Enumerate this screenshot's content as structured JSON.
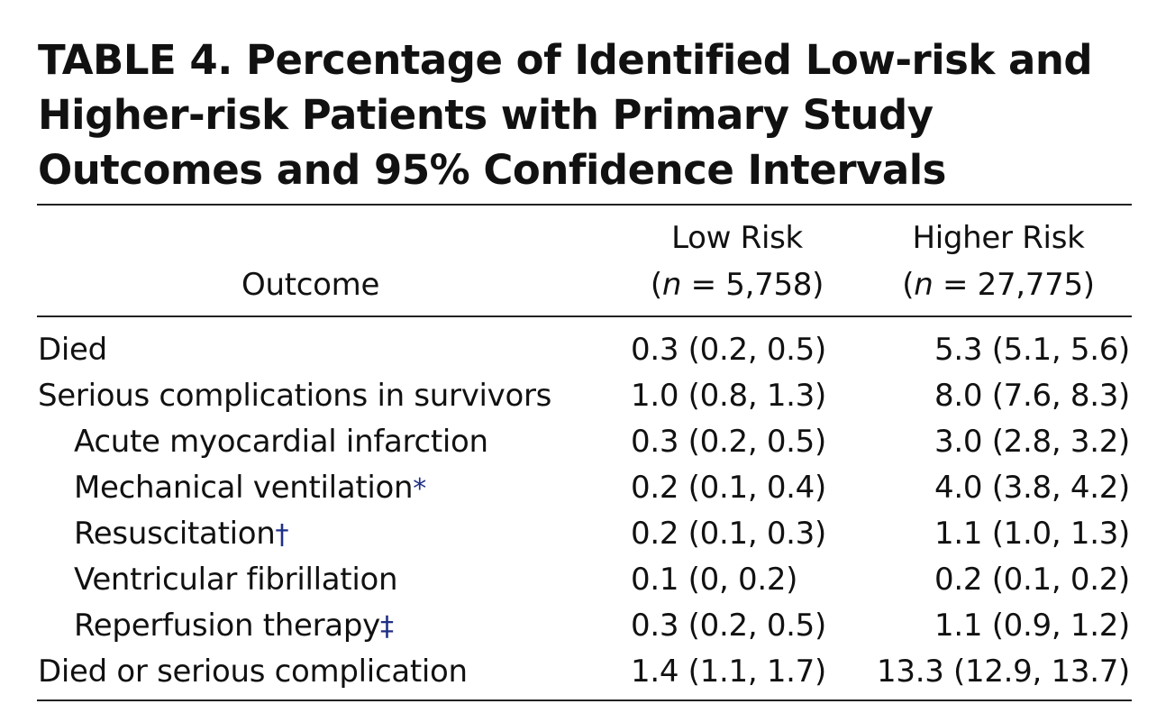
{
  "table": {
    "title": "TABLE 4. Percentage of Identified Low-risk and Higher-risk Patients with Primary Study Outcomes and 95% Confidence Intervals",
    "headers": {
      "outcome": "Outcome",
      "low_risk": "Low Risk",
      "low_risk_n_var": "n",
      "low_risk_n_value": " = 5,758)",
      "higher_risk": "Higher Risk",
      "higher_risk_n_var": "n",
      "higher_risk_n_value": " = 27,775)",
      "open_paren": "("
    },
    "rows": [
      {
        "outcome": "Died",
        "mark": "",
        "low": "0.3 (0.2, 0.5)",
        "high": "5.3 (5.1, 5.6)"
      },
      {
        "outcome": "Serious complications in survivors",
        "mark": "",
        "low": "1.0 (0.8, 1.3)",
        "high": "8.0 (7.6, 8.3)"
      },
      {
        "outcome": "Acute myocardial infarction",
        "mark": "",
        "low": "0.3 (0.2, 0.5)",
        "high": "3.0 (2.8, 3.2)"
      },
      {
        "outcome": "Mechanical ventilation",
        "mark": "*",
        "low": "0.2 (0.1, 0.4)",
        "high": "4.0 (3.8, 4.2)"
      },
      {
        "outcome": "Resuscitation",
        "mark": "†",
        "low": "0.2 (0.1, 0.3)",
        "high": "1.1 (1.0, 1.3)"
      },
      {
        "outcome": "Ventricular fibrillation",
        "mark": "",
        "low": "0.1 (0, 0.2)",
        "high": "0.2 (0.1, 0.2)"
      },
      {
        "outcome": "Reperfusion therapy",
        "mark": "‡",
        "low": "0.3 (0.2, 0.5)",
        "high": "1.1 (0.9, 1.2)"
      },
      {
        "outcome": "Died or serious complication",
        "mark": "",
        "low": "1.4 (1.1, 1.7)",
        "high": "13.3 (12.9, 13.7)"
      }
    ]
  },
  "colors": {
    "text": "#111111",
    "footnote_mark": "#1f2f86",
    "rule": "#222222"
  }
}
